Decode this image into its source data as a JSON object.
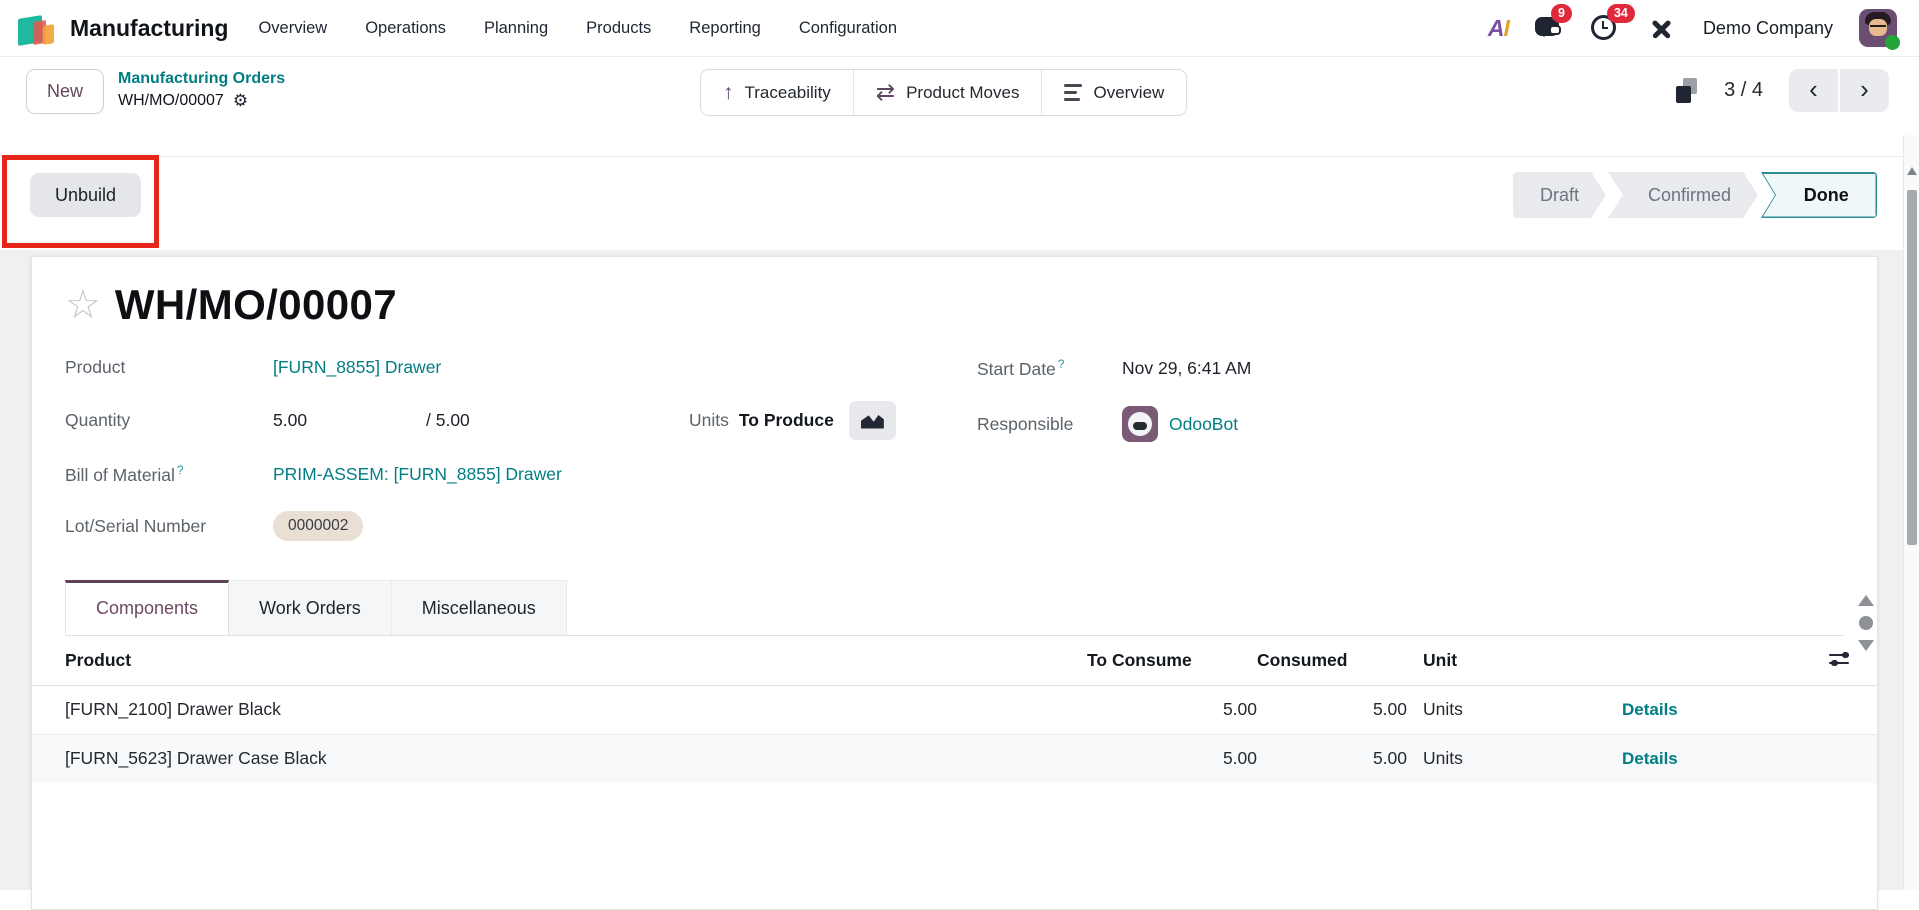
{
  "navbar": {
    "brand": "Manufacturing",
    "menu_items": [
      "Overview",
      "Operations",
      "Planning",
      "Products",
      "Reporting",
      "Configuration"
    ],
    "messages_badge": "9",
    "activities_badge": "34",
    "company": "Demo Company"
  },
  "control_panel": {
    "new_label": "New",
    "breadcrumb": {
      "parent": "Manufacturing Orders",
      "current": "WH/MO/00007"
    },
    "actions": [
      {
        "label": "Traceability",
        "icon": "arrow-up-icon"
      },
      {
        "label": "Product Moves",
        "icon": "swap-arrows-icon"
      },
      {
        "label": "Overview",
        "icon": "lines-icon"
      }
    ],
    "pager": "3 / 4"
  },
  "status": {
    "unbuild_label": "Unbuild",
    "states": [
      {
        "label": "Draft",
        "active": false
      },
      {
        "label": "Confirmed",
        "active": false
      },
      {
        "label": "Done",
        "active": true
      }
    ]
  },
  "form": {
    "title": "WH/MO/00007",
    "fields": {
      "product": {
        "label": "Product",
        "value": "[FURN_8855] Drawer"
      },
      "quantity": {
        "label": "Quantity",
        "value": "5.00",
        "total": "/ 5.00",
        "units_label": "Units",
        "to_produce_label": "To Produce"
      },
      "bom": {
        "label": "Bill of Material",
        "help": "?",
        "value": "PRIM-ASSEM: [FURN_8855] Drawer"
      },
      "lot": {
        "label": "Lot/Serial Number",
        "value": "0000002"
      },
      "start_date": {
        "label": "Start Date",
        "help": "?",
        "value": "Nov 29, 6:41 AM"
      },
      "responsible": {
        "label": "Responsible",
        "value": "OdooBot"
      }
    },
    "tabs": [
      "Components",
      "Work Orders",
      "Miscellaneous"
    ],
    "table": {
      "headers": [
        "Product",
        "To Consume",
        "Consumed",
        "Unit"
      ],
      "details_label": "Details",
      "rows": [
        {
          "product": "[FURN_2100] Drawer Black",
          "to_consume": "5.00",
          "consumed": "5.00",
          "unit": "Units"
        },
        {
          "product": "[FURN_5623] Drawer Case Black",
          "to_consume": "5.00",
          "consumed": "5.00",
          "unit": "Units"
        }
      ]
    }
  },
  "icons": {
    "gear": "⚙",
    "star": "☆",
    "arrow_up": "↑",
    "swap": "⇄",
    "prev": "‹",
    "next": "›",
    "ai_a": "A",
    "ai_i": "I"
  },
  "colors": {
    "accent": "#714B67",
    "link": "#017E84",
    "badge": "#E0293A",
    "annotation": "#E8251A",
    "done_border": "#2C8E93",
    "tab_active": "#5E4257"
  }
}
